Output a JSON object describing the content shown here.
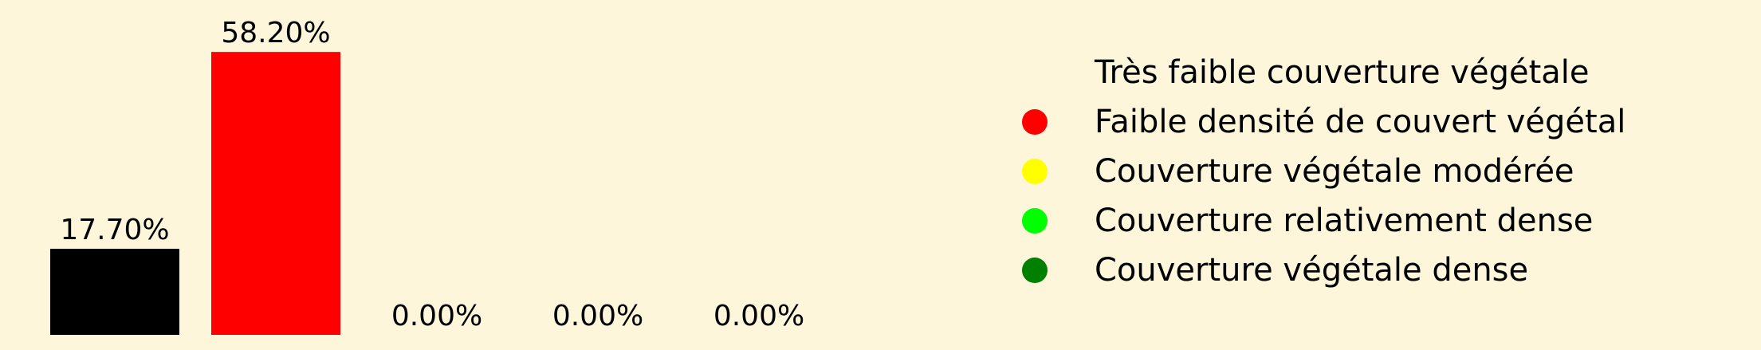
{
  "background": "#fdf6da",
  "chart_data": {
    "type": "bar",
    "categories": [
      "Très faible couverture végétale",
      "Faible densité de couvert végétal",
      "Couverture végétale modérée",
      "Couverture relativement dense",
      "Couverture végétale dense"
    ],
    "values": [
      17.7,
      58.2,
      0.0,
      0.0,
      0.0
    ],
    "data_labels": [
      "17.70%",
      "58.20%",
      "0.00%",
      "0.00%",
      "0.00%"
    ],
    "colors": [
      "#000000",
      "#ff0000",
      "#ffff00",
      "#00ff00",
      "#008000"
    ],
    "unit": "%",
    "ylim": [
      0,
      62
    ],
    "title": "",
    "xlabel": "",
    "ylabel": "",
    "grid": false,
    "axes_visible": false,
    "legend_placement": "right"
  }
}
